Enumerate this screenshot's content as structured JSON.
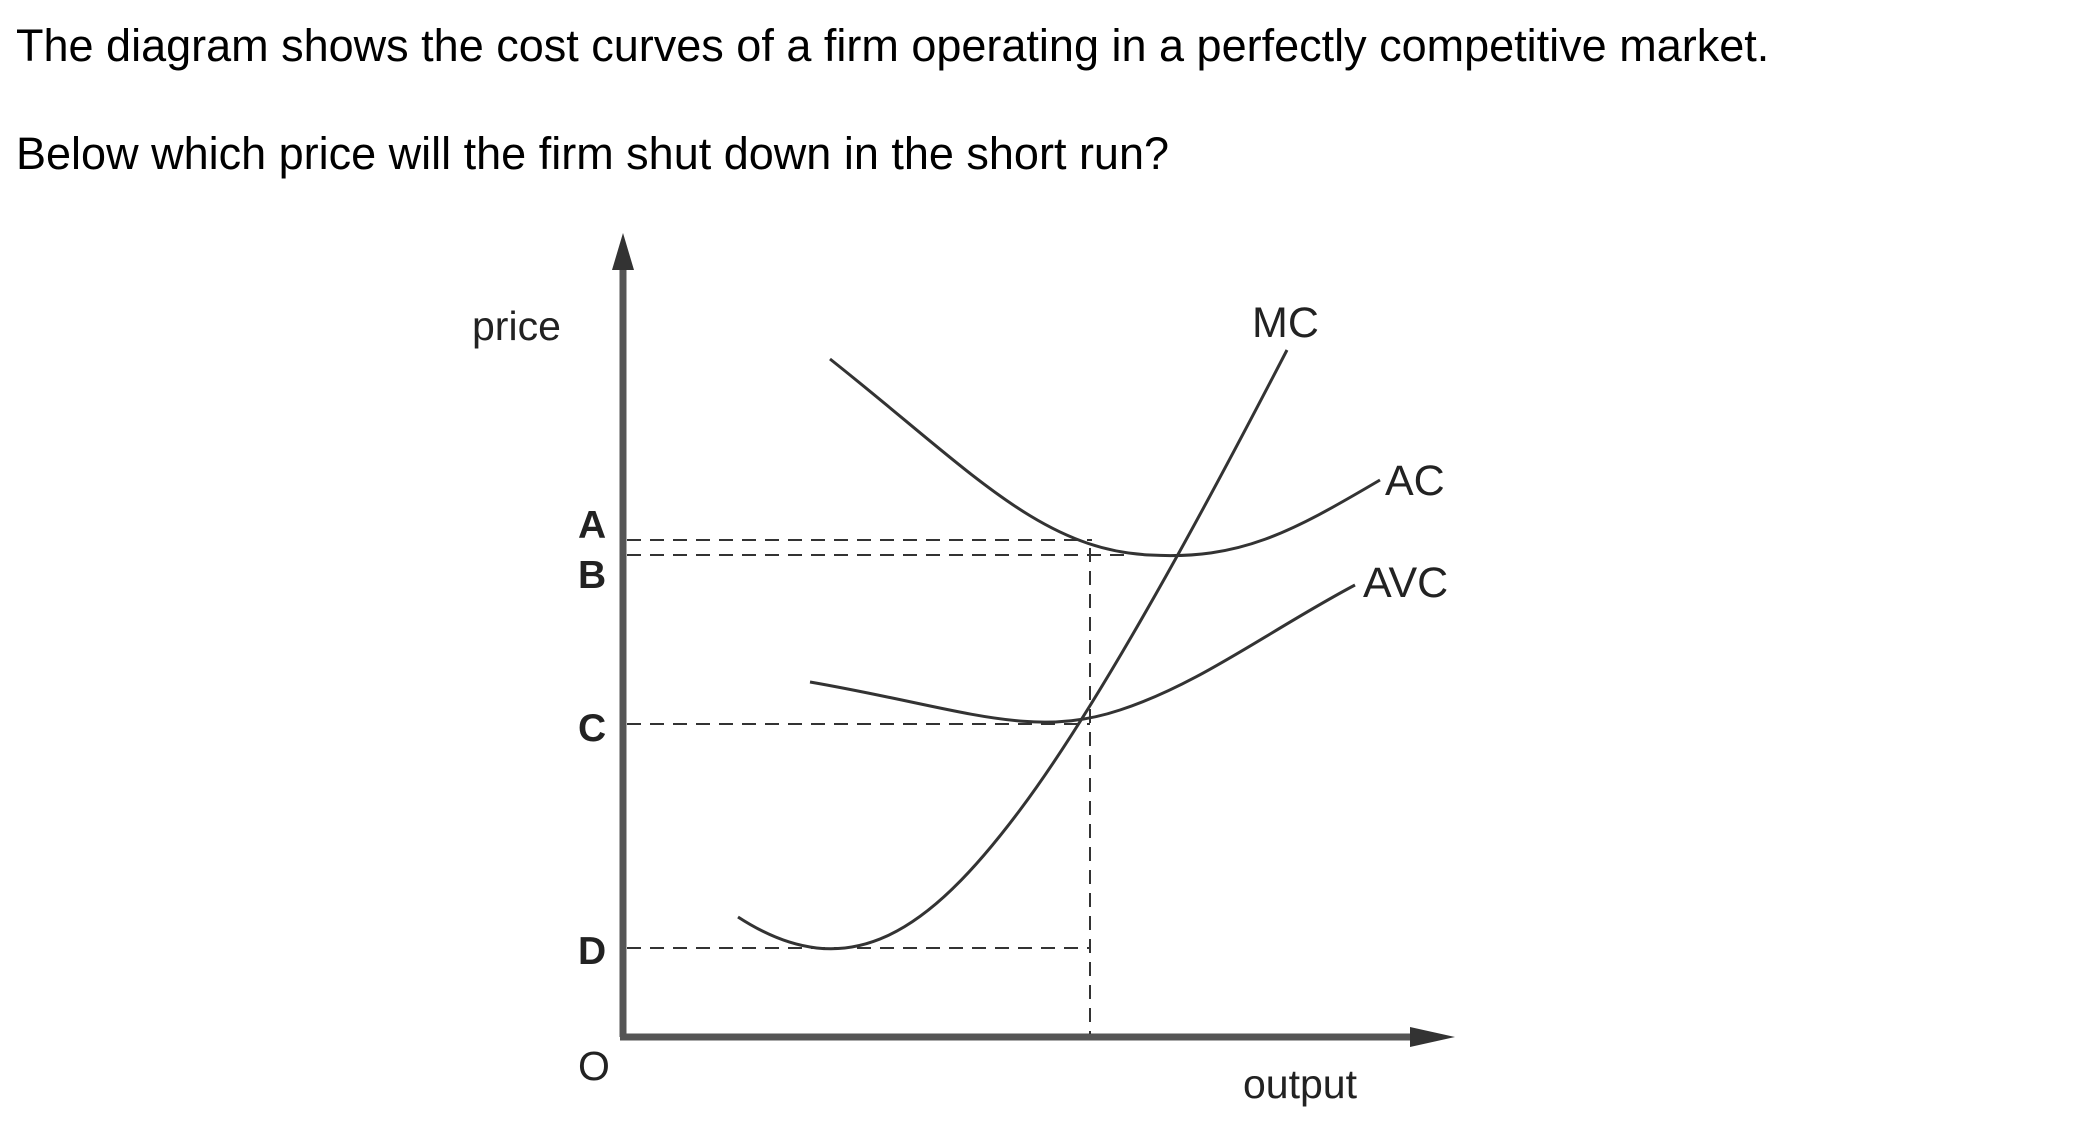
{
  "question": {
    "line1": "The diagram shows the cost curves of a firm operating in a perfectly competitive market.",
    "line2": "Below which price will the firm shut down in the short run?"
  },
  "diagram": {
    "y_axis_label": "price",
    "x_axis_label": "output",
    "origin_label": "O",
    "price_levels": {
      "A": "A",
      "B": "B",
      "C": "C",
      "D": "D"
    },
    "curves": {
      "mc": "MC",
      "ac": "AC",
      "avc": "AVC"
    }
  }
}
